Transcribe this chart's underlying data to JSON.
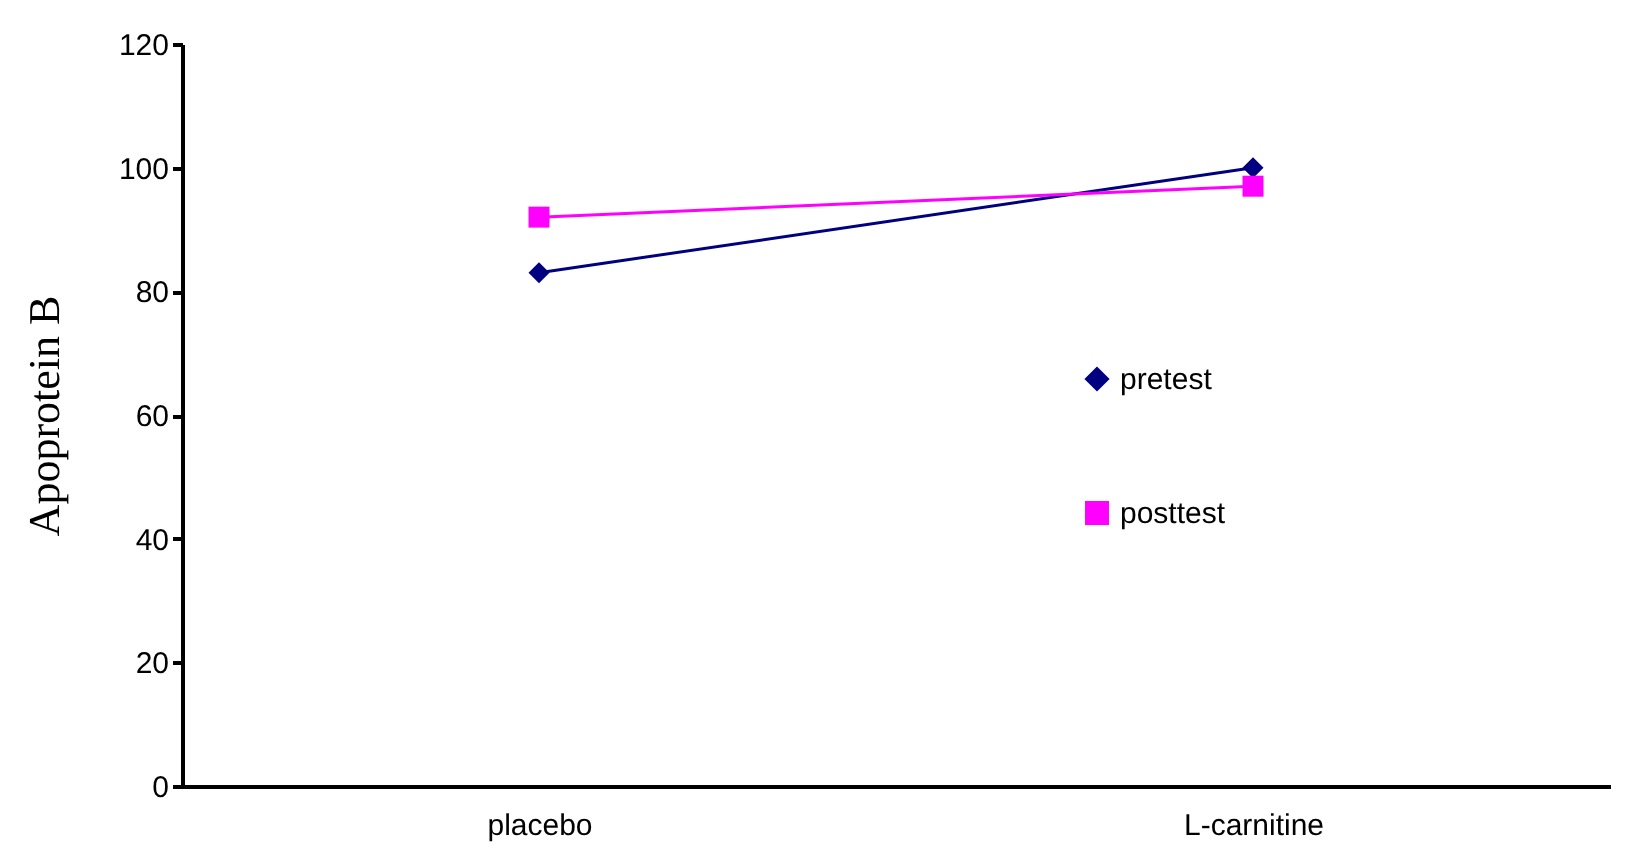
{
  "chart_data": {
    "type": "line",
    "ylabel": "Apoprotein B",
    "categories": [
      "placebo",
      "L-carnitine"
    ],
    "series": [
      {
        "name": "pretest",
        "color": "#000080",
        "values": [
          83,
          100
        ],
        "marker": "diamond"
      },
      {
        "name": "posttest",
        "color": "#ff00ff",
        "values": [
          92,
          97
        ],
        "marker": "square"
      }
    ],
    "ylim": [
      0,
      120
    ],
    "yticks": [
      0,
      20,
      40,
      60,
      80,
      100,
      120
    ],
    "grid": false,
    "legend": "right"
  }
}
